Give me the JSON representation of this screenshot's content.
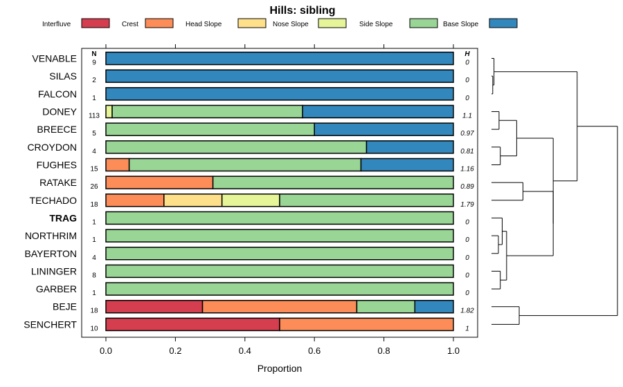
{
  "chart_data": {
    "type": "bar",
    "subtype": "stacked-horizontal-proportion",
    "title": "Hills: sibling",
    "xlabel": "Proportion",
    "ylabel": "",
    "xlim": [
      0,
      1
    ],
    "xticks": [
      "0.0",
      "0.2",
      "0.4",
      "0.6",
      "0.8",
      "1.0"
    ],
    "n_header": "N",
    "h_header": "H",
    "legend": [
      {
        "name": "Interfluve",
        "color": "#d53e4f"
      },
      {
        "name": "Crest",
        "color": "#fc8d59"
      },
      {
        "name": "Head Slope",
        "color": "#fee08b"
      },
      {
        "name": "Nose Slope",
        "color": "#e6f598"
      },
      {
        "name": "Side Slope",
        "color": "#99d594"
      },
      {
        "name": "Base Slope",
        "color": "#3288bd"
      }
    ],
    "rows": [
      {
        "name": "VENABLE",
        "n": "9",
        "h": "0",
        "bold": false,
        "values": [
          0,
          0,
          0,
          0,
          0,
          1
        ]
      },
      {
        "name": "SILAS",
        "n": "2",
        "h": "0",
        "bold": false,
        "values": [
          0,
          0,
          0,
          0,
          0,
          1
        ]
      },
      {
        "name": "FALCON",
        "n": "1",
        "h": "0",
        "bold": false,
        "values": [
          0,
          0,
          0,
          0,
          0,
          1
        ]
      },
      {
        "name": "DONEY",
        "n": "113",
        "h": "1.1",
        "bold": false,
        "values": [
          0,
          0,
          0,
          0.018,
          0.548,
          0.434
        ]
      },
      {
        "name": "BREECE",
        "n": "5",
        "h": "0.97",
        "bold": false,
        "values": [
          0,
          0,
          0,
          0,
          0.6,
          0.4
        ]
      },
      {
        "name": "CROYDON",
        "n": "4",
        "h": "0.81",
        "bold": false,
        "values": [
          0,
          0,
          0,
          0,
          0.75,
          0.25
        ]
      },
      {
        "name": "FUGHES",
        "n": "15",
        "h": "1.16",
        "bold": false,
        "values": [
          0,
          0.067,
          0,
          0,
          0.667,
          0.266
        ]
      },
      {
        "name": "RATAKE",
        "n": "26",
        "h": "0.89",
        "bold": false,
        "values": [
          0,
          0.308,
          0,
          0,
          0.692,
          0
        ]
      },
      {
        "name": "TECHADO",
        "n": "18",
        "h": "1.79",
        "bold": false,
        "values": [
          0,
          0.167,
          0.167,
          0.166,
          0.5,
          0
        ]
      },
      {
        "name": "TRAG",
        "n": "1",
        "h": "0",
        "bold": true,
        "values": [
          0,
          0,
          0,
          0,
          1,
          0
        ]
      },
      {
        "name": "NORTHRIM",
        "n": "1",
        "h": "0",
        "bold": false,
        "values": [
          0,
          0,
          0,
          0,
          1,
          0
        ]
      },
      {
        "name": "BAYERTON",
        "n": "4",
        "h": "0",
        "bold": false,
        "values": [
          0,
          0,
          0,
          0,
          1,
          0
        ]
      },
      {
        "name": "LININGER",
        "n": "8",
        "h": "0",
        "bold": false,
        "values": [
          0,
          0,
          0,
          0,
          1,
          0
        ]
      },
      {
        "name": "GARBER",
        "n": "1",
        "h": "0",
        "bold": false,
        "values": [
          0,
          0,
          0,
          0,
          1,
          0
        ]
      },
      {
        "name": "BEJE",
        "n": "18",
        "h": "1.82",
        "bold": false,
        "values": [
          0.278,
          0.444,
          0,
          0,
          0.167,
          0.111
        ]
      },
      {
        "name": "SENCHERT",
        "n": "10",
        "h": "1",
        "bold": false,
        "values": [
          0.5,
          0.5,
          0,
          0,
          0,
          0
        ]
      }
    ],
    "dendrogram": {
      "description": "hierarchical clustering of rows (leaf order top to bottom)",
      "merges": [
        {
          "id": "A",
          "children": [
            "SILAS",
            "FALCON"
          ],
          "height": 0.01
        },
        {
          "id": "B",
          "children": [
            "VENABLE",
            "A"
          ],
          "height": 0.02
        },
        {
          "id": "C",
          "children": [
            "DONEY",
            "BREECE"
          ],
          "height": 0.06
        },
        {
          "id": "D",
          "children": [
            "CROYDON",
            "FUGHES"
          ],
          "height": 0.07
        },
        {
          "id": "E",
          "children": [
            "C",
            "D"
          ],
          "height": 0.2
        },
        {
          "id": "F",
          "children": [
            "RATAKE",
            "TECHADO"
          ],
          "height": 0.25
        },
        {
          "id": "G",
          "children": [
            "NORTHRIM",
            "BAYERTON"
          ],
          "height": 0.055
        },
        {
          "id": "H",
          "children": [
            "TRAG",
            "G"
          ],
          "height": 0.085
        },
        {
          "id": "I",
          "children": [
            "LININGER",
            "GARBER"
          ],
          "height": 0.07
        },
        {
          "id": "J",
          "children": [
            "H",
            "I"
          ],
          "height": 0.12
        },
        {
          "id": "K",
          "children": [
            "F",
            "J"
          ],
          "height": 0.49
        },
        {
          "id": "L",
          "children": [
            "E",
            "K"
          ],
          "height": 0.49
        },
        {
          "id": "M",
          "children": [
            "B",
            "L"
          ],
          "height": 0.68
        },
        {
          "id": "N",
          "children": [
            "BEJE",
            "SENCHERT"
          ],
          "height": 0.22
        },
        {
          "id": "O",
          "children": [
            "M",
            "N"
          ],
          "height": 1.0
        }
      ]
    }
  }
}
